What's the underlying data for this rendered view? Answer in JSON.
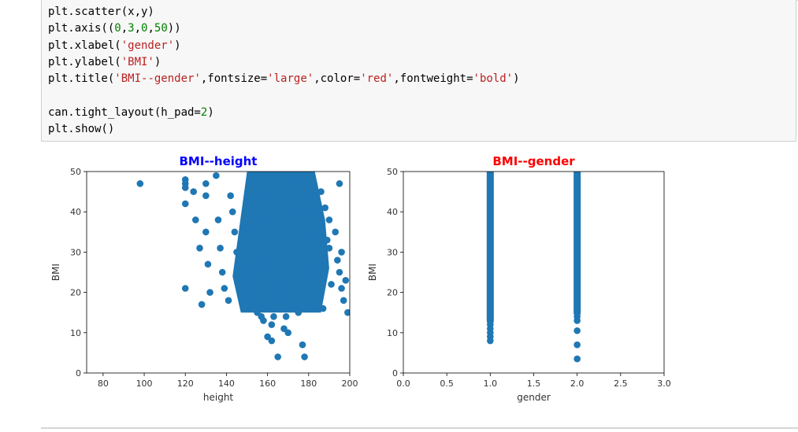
{
  "code_cell": {
    "lines": [
      [
        [
          "plt.scatter(x,y)",
          "fn"
        ]
      ],
      [
        [
          "plt.axis((",
          "fn"
        ],
        [
          "0",
          "num"
        ],
        [
          ",",
          "fn"
        ],
        [
          "3",
          "num"
        ],
        [
          ",",
          "fn"
        ],
        [
          "0",
          "num"
        ],
        [
          ",",
          "fn"
        ],
        [
          "50",
          "num"
        ],
        [
          "))",
          "fn"
        ]
      ],
      [
        [
          "plt.xlabel(",
          "fn"
        ],
        [
          "'gender'",
          "str"
        ],
        [
          ")",
          "fn"
        ]
      ],
      [
        [
          "plt.ylabel(",
          "fn"
        ],
        [
          "'BMI'",
          "str"
        ],
        [
          ")",
          "fn"
        ]
      ],
      [
        [
          "plt.title(",
          "fn"
        ],
        [
          "'BMI--gender'",
          "str"
        ],
        [
          ",fontsize=",
          "fn"
        ],
        [
          "'large'",
          "str"
        ],
        [
          ",color=",
          "fn"
        ],
        [
          "'red'",
          "str"
        ],
        [
          ",fontweight=",
          "fn"
        ],
        [
          "'bold'",
          "str"
        ],
        [
          ")",
          "fn"
        ]
      ],
      [
        [
          "",
          "fn"
        ]
      ],
      [
        [
          "can.tight_layout(h_pad=",
          "fn"
        ],
        [
          "2",
          "num"
        ],
        [
          ")",
          "fn"
        ]
      ],
      [
        [
          "plt.show()",
          "fn"
        ]
      ]
    ]
  },
  "colors": {
    "point": "#1f77b4",
    "title_left": "#0000ff",
    "title_right": "#ff0000"
  },
  "chart_data": [
    {
      "type": "scatter",
      "title": "BMI--height",
      "title_color": "#0000ff",
      "xlabel": "height",
      "ylabel": "BMI",
      "xlim": [
        72,
        200
      ],
      "ylim": [
        0,
        50
      ],
      "xticks": [
        "80",
        "100",
        "120",
        "140",
        "160",
        "180",
        "200"
      ],
      "yticks": [
        "0",
        "10",
        "20",
        "30",
        "40",
        "50"
      ],
      "points": [
        [
          98,
          47
        ],
        [
          120,
          48
        ],
        [
          120,
          47
        ],
        [
          120,
          46
        ],
        [
          120,
          42
        ],
        [
          120,
          21
        ],
        [
          124,
          45
        ],
        [
          125,
          38
        ],
        [
          127,
          31
        ],
        [
          128,
          17
        ],
        [
          130,
          47
        ],
        [
          130,
          44
        ],
        [
          130,
          35
        ],
        [
          131,
          27
        ],
        [
          132,
          20
        ],
        [
          135,
          49
        ],
        [
          136,
          38
        ],
        [
          137,
          31
        ],
        [
          138,
          25
        ],
        [
          139,
          21
        ],
        [
          141,
          18
        ],
        [
          142,
          44
        ],
        [
          143,
          40
        ],
        [
          144,
          35
        ],
        [
          145,
          30
        ],
        [
          148,
          26
        ],
        [
          149,
          23
        ],
        [
          150,
          42
        ],
        [
          151,
          19
        ],
        [
          154,
          33
        ],
        [
          155,
          15
        ],
        [
          156,
          28
        ],
        [
          158,
          13
        ],
        [
          158,
          44
        ],
        [
          160,
          9
        ],
        [
          162,
          8
        ],
        [
          162,
          12
        ],
        [
          163,
          16
        ],
        [
          165,
          4
        ],
        [
          165,
          22
        ],
        [
          168,
          11
        ],
        [
          170,
          10
        ],
        [
          171,
          36
        ],
        [
          174,
          17
        ],
        [
          176,
          43
        ],
        [
          177,
          7
        ],
        [
          178,
          4
        ],
        [
          179,
          26
        ],
        [
          180,
          34
        ],
        [
          182,
          40
        ],
        [
          184,
          20
        ],
        [
          186,
          29
        ],
        [
          187,
          16
        ],
        [
          188,
          41
        ],
        [
          190,
          38
        ],
        [
          190,
          31
        ],
        [
          191,
          22
        ],
        [
          193,
          35
        ],
        [
          195,
          47
        ],
        [
          195,
          25
        ],
        [
          196,
          30
        ],
        [
          197,
          18
        ],
        [
          198,
          23
        ],
        [
          199,
          15
        ],
        [
          196,
          21
        ],
        [
          194,
          28
        ],
        [
          189,
          33
        ],
        [
          186,
          45
        ],
        [
          183,
          37
        ],
        [
          179,
          47
        ],
        [
          174,
          49
        ],
        [
          169,
          48
        ],
        [
          166,
          50
        ],
        [
          160,
          50
        ],
        [
          153,
          48
        ],
        [
          150,
          36
        ],
        [
          147,
          30
        ],
        [
          146,
          22
        ],
        [
          152,
          16
        ],
        [
          157,
          14
        ],
        [
          163,
          14
        ],
        [
          169,
          14
        ],
        [
          175,
          15
        ],
        [
          181,
          16
        ],
        [
          185,
          24
        ],
        [
          188,
          28
        ],
        [
          168,
          19
        ],
        [
          161,
          26
        ],
        [
          155,
          38
        ],
        [
          172,
          40
        ]
      ],
      "dense_core_x": [
        143,
        190
      ],
      "dense_core_y": [
        15,
        50
      ]
    },
    {
      "type": "scatter",
      "title": "BMI--gender",
      "title_color": "#ff0000",
      "xlabel": "gender",
      "ylabel": "BMI",
      "xlim": [
        0,
        3
      ],
      "ylim": [
        0,
        50
      ],
      "xticks": [
        "0.0",
        "0.5",
        "1.0",
        "1.5",
        "2.0",
        "2.5",
        "3.0"
      ],
      "yticks": [
        "0",
        "10",
        "20",
        "30",
        "40",
        "50"
      ],
      "points": [
        [
          1.0,
          8
        ],
        [
          1.0,
          9
        ],
        [
          1.0,
          10
        ],
        [
          1.0,
          11
        ],
        [
          1.0,
          12
        ],
        [
          2.0,
          3.5
        ],
        [
          2.0,
          7
        ],
        [
          2.0,
          10.5
        ],
        [
          2.0,
          13
        ],
        [
          2.0,
          14
        ]
      ],
      "columns": [
        {
          "x": 1.0,
          "y_from": 12,
          "y_to": 50
        },
        {
          "x": 2.0,
          "y_from": 14,
          "y_to": 50
        }
      ]
    }
  ]
}
